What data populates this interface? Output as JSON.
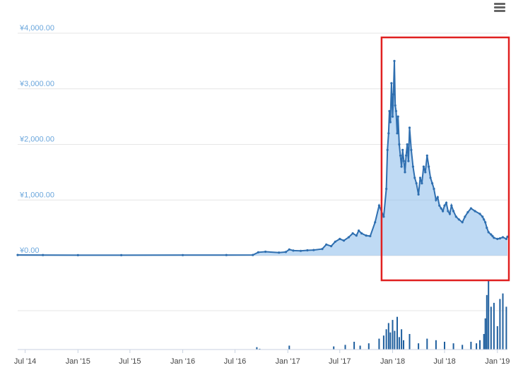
{
  "toolbar": {
    "menu_icon": "hamburger-menu-icon"
  },
  "colors": {
    "line": "#2f6fb0",
    "area": "#7fb6ea",
    "axis_label": "#6aa6dc",
    "grid": "#e6e6e6",
    "volume": "#1f5f9e",
    "highlight": "#e02020"
  },
  "chart_data": {
    "type": "line",
    "currency_prefix": "¥",
    "y_ticks": [
      "¥4,000.00",
      "¥3,000.00",
      "¥2,000.00",
      "¥1,000.00",
      "¥0.00"
    ],
    "y_tick_values": [
      4000,
      3000,
      2000,
      1000,
      0
    ],
    "ylim": [
      0,
      4000
    ],
    "x_ticks": [
      "Jul '14",
      "Jan '15",
      "Jul '15",
      "Jan '16",
      "Jul '16",
      "Jan '17",
      "Jul '17",
      "Jan '18",
      "Jul '18",
      "Jan '19"
    ],
    "x_tick_dates": [
      "2014-07-01",
      "2015-01-01",
      "2015-07-01",
      "2016-01-01",
      "2016-07-01",
      "2017-01-01",
      "2017-07-01",
      "2018-01-01",
      "2018-07-01",
      "2019-01-01"
    ],
    "xlim": [
      "2014-06-05",
      "2019-02-05"
    ],
    "grid": true,
    "highlight_range": [
      "2017-12-01",
      "2019-02-05"
    ],
    "series": [
      {
        "x": [
          "2014-06-05",
          "2014-09-01",
          "2015-01-01",
          "2015-06-01",
          "2016-01-01",
          "2016-06-01",
          "2016-09-01",
          "2016-09-20",
          "2016-10-15",
          "2016-12-01",
          "2016-12-25",
          "2017-01-06",
          "2017-01-20",
          "2017-02-15",
          "2017-03-10",
          "2017-04-01",
          "2017-05-01",
          "2017-05-15",
          "2017-06-01",
          "2017-06-15",
          "2017-07-01",
          "2017-07-15",
          "2017-08-01",
          "2017-08-15",
          "2017-08-28",
          "2017-09-05",
          "2017-09-15",
          "2017-10-01",
          "2017-10-15",
          "2017-11-01",
          "2017-11-15",
          "2017-12-01",
          "2017-12-10",
          "2017-12-14",
          "2017-12-18",
          "2017-12-21",
          "2017-12-24",
          "2017-12-28",
          "2018-01-01",
          "2018-01-04",
          "2018-01-07",
          "2018-01-10",
          "2018-01-13",
          "2018-01-17",
          "2018-01-20",
          "2018-01-24",
          "2018-01-28",
          "2018-02-01",
          "2018-02-05",
          "2018-02-09",
          "2018-02-13",
          "2018-02-17",
          "2018-02-21",
          "2018-02-25",
          "2018-03-01",
          "2018-03-07",
          "2018-03-13",
          "2018-03-19",
          "2018-03-25",
          "2018-04-01",
          "2018-04-07",
          "2018-04-13",
          "2018-04-19",
          "2018-04-25",
          "2018-05-01",
          "2018-05-07",
          "2018-05-13",
          "2018-05-19",
          "2018-05-25",
          "2018-06-01",
          "2018-06-07",
          "2018-06-13",
          "2018-06-19",
          "2018-06-25",
          "2018-07-01",
          "2018-07-07",
          "2018-07-13",
          "2018-07-19",
          "2018-07-25",
          "2018-08-01",
          "2018-08-10",
          "2018-08-20",
          "2018-09-01",
          "2018-09-10",
          "2018-09-20",
          "2018-10-01",
          "2018-10-15",
          "2018-11-01",
          "2018-11-10",
          "2018-11-15",
          "2018-11-20",
          "2018-11-25",
          "2018-12-01",
          "2018-12-10",
          "2018-12-15",
          "2018-12-20",
          "2019-01-01",
          "2019-01-10",
          "2019-01-20",
          "2019-02-01",
          "2019-02-05"
        ],
        "y": [
          12,
          10,
          8,
          8,
          9,
          10,
          12,
          60,
          70,
          55,
          65,
          110,
          90,
          85,
          95,
          100,
          120,
          200,
          170,
          250,
          300,
          270,
          330,
          400,
          360,
          450,
          400,
          360,
          350,
          600,
          900,
          700,
          1200,
          1900,
          2200,
          2600,
          2400,
          3100,
          2500,
          2900,
          3500,
          2700,
          2600,
          2200,
          2500,
          2000,
          1800,
          1600,
          1900,
          1700,
          1500,
          1800,
          2000,
          1700,
          2300,
          1900,
          1600,
          1400,
          1300,
          1100,
          1400,
          1300,
          1600,
          1500,
          1800,
          1600,
          1400,
          1300,
          1200,
          1000,
          1050,
          900,
          850,
          800,
          900,
          950,
          800,
          750,
          900,
          800,
          700,
          650,
          600,
          700,
          780,
          850,
          800,
          750,
          700,
          650,
          600,
          500,
          420,
          380,
          350,
          320,
          300,
          310,
          330,
          300,
          340
        ]
      }
    ],
    "volume": {
      "x": [
        "2014-06-05",
        "2016-09-15",
        "2016-09-25",
        "2017-01-06",
        "2017-06-10",
        "2017-07-20",
        "2017-08-20",
        "2017-09-10",
        "2017-10-10",
        "2017-11-15",
        "2017-12-01",
        "2017-12-10",
        "2017-12-18",
        "2017-12-24",
        "2018-01-01",
        "2018-01-08",
        "2018-01-17",
        "2018-01-24",
        "2018-02-01",
        "2018-02-08",
        "2018-03-01",
        "2018-04-01",
        "2018-05-01",
        "2018-06-01",
        "2018-07-01",
        "2018-08-01",
        "2018-09-01",
        "2018-10-01",
        "2018-10-20",
        "2018-11-01",
        "2018-11-15",
        "2018-11-20",
        "2018-11-25",
        "2018-12-01",
        "2018-12-10",
        "2018-12-20",
        "2019-01-01",
        "2019-01-10",
        "2019-01-20",
        "2019-02-01"
      ],
      "values": [
        0,
        3,
        1,
        5,
        4,
        6,
        10,
        5,
        8,
        14,
        18,
        26,
        34,
        22,
        38,
        24,
        42,
        16,
        26,
        12,
        20,
        8,
        14,
        12,
        10,
        8,
        6,
        10,
        8,
        12,
        20,
        40,
        70,
        88,
        55,
        60,
        30,
        65,
        72,
        55
      ]
    }
  }
}
